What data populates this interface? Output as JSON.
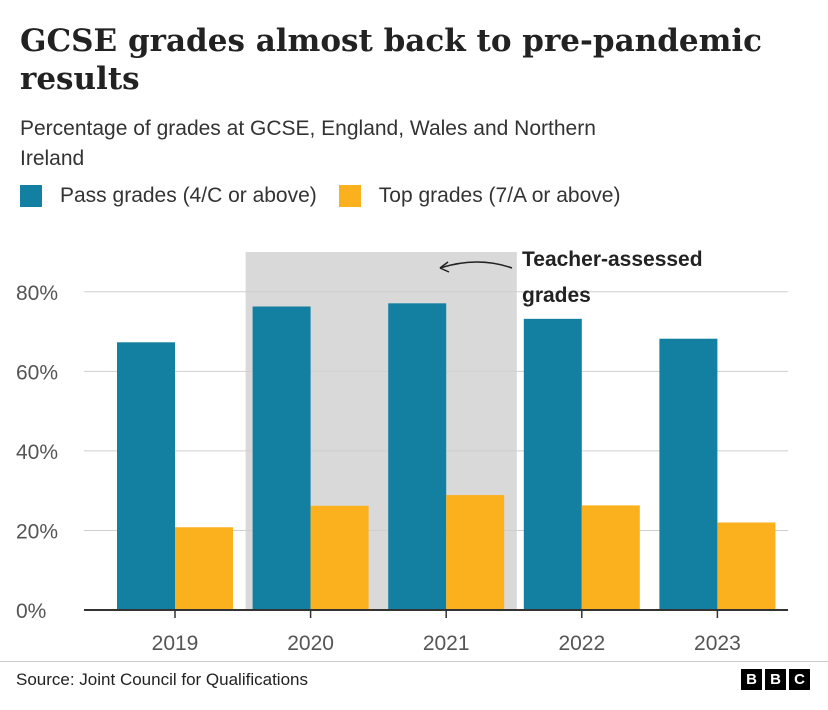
{
  "title": "GCSE grades almost back to pre-pandemic results",
  "subtitle": "Percentage of grades at GCSE, England, Wales and Northern Ireland",
  "source": "Source: Joint Council for Qualifications",
  "logo": [
    "B",
    "B",
    "C"
  ],
  "chart_data": {
    "type": "bar",
    "categories": [
      "2019",
      "2020",
      "2021",
      "2022",
      "2023"
    ],
    "series": [
      {
        "name": "Pass grades (4/C or above)",
        "values": [
          67.3,
          76.3,
          77.1,
          73.2,
          68.2
        ],
        "color": "#1380a1"
      },
      {
        "name": "Top grades (7/A or above)",
        "values": [
          20.8,
          26.2,
          28.9,
          26.3,
          22.0
        ],
        "color": "#fbb01e"
      }
    ],
    "ylim": [
      0,
      90
    ],
    "yticks": [
      0,
      20,
      40,
      60,
      80
    ],
    "ytick_labels": [
      "0%",
      "20%",
      "40%",
      "60%",
      "80%"
    ],
    "grid": true,
    "highlight": {
      "from": "2020",
      "to": "2021",
      "color": "#d9d9d9"
    },
    "annotation": {
      "text_line1": "Teacher-assessed",
      "text_line2": "grades"
    }
  }
}
